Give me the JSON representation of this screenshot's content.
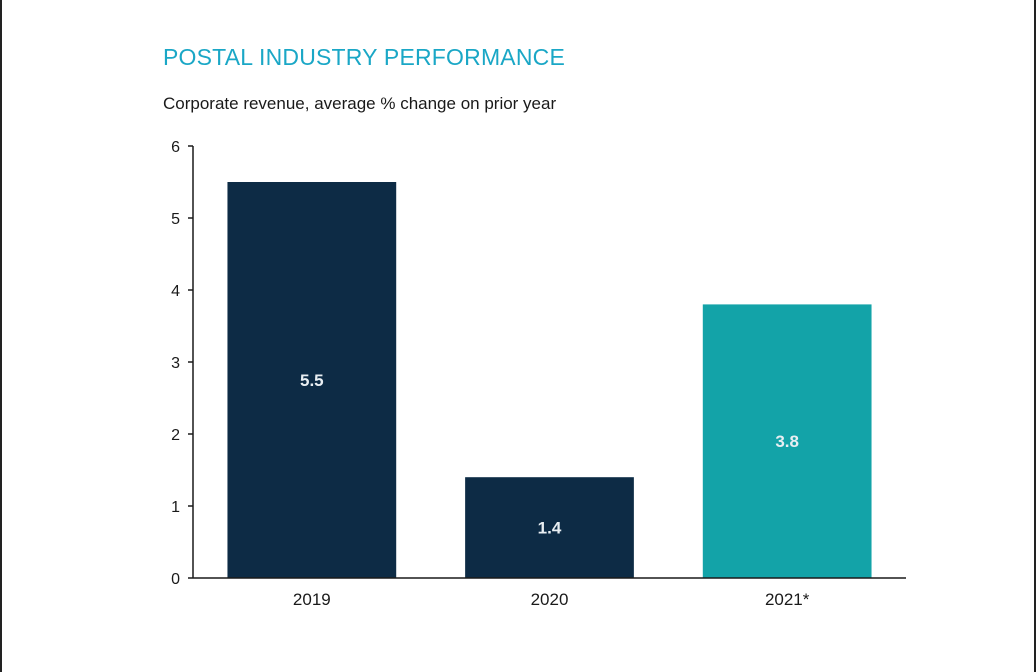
{
  "chart_data": {
    "type": "bar",
    "title": "POSTAL INDUSTRY PERFORMANCE",
    "subtitle": "Corporate revenue, average % change on prior year",
    "categories": [
      "2019",
      "2020",
      "2021*"
    ],
    "values": [
      5.5,
      1.4,
      3.8
    ],
    "value_labels": [
      "5.5",
      "1.4",
      "3.8"
    ],
    "bar_colors": [
      "#0d2b45",
      "#0d2b45",
      "#13a3a8"
    ],
    "xlabel": "",
    "ylabel": "",
    "ylim": [
      0,
      6
    ],
    "yticks": [
      "0",
      "1",
      "2",
      "3",
      "4",
      "5",
      "6"
    ],
    "grid": false,
    "legend": "none"
  },
  "colors": {
    "title": "#1aa7c6",
    "axis": "#1a1a1a",
    "label_on_bar": "#e8eef2"
  }
}
